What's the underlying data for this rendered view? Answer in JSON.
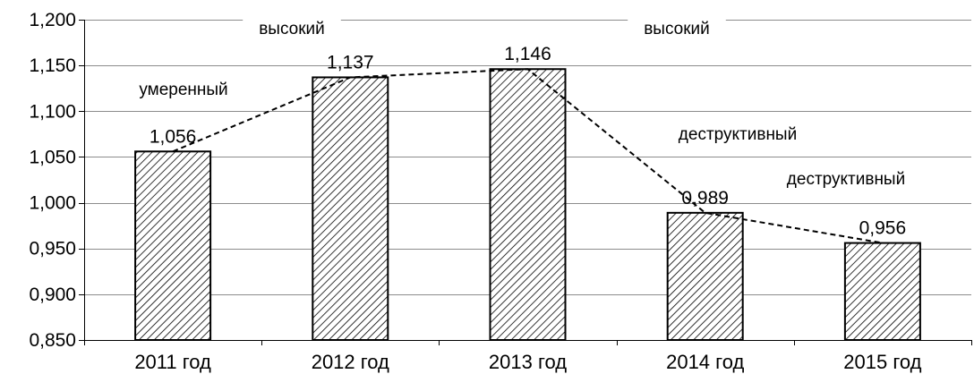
{
  "chart_data": {
    "type": "bar",
    "categories": [
      "2011 год",
      "2012 год",
      "2013 год",
      "2014 год",
      "2015 год"
    ],
    "values": [
      1.056,
      1.137,
      1.146,
      0.989,
      0.956
    ],
    "value_labels": [
      "1,056",
      "1,137",
      "1,146",
      "0,989",
      "0,956"
    ],
    "ylim": [
      0.85,
      1.2
    ],
    "yticks": [
      0.85,
      0.9,
      0.95,
      1.0,
      1.05,
      1.1,
      1.15,
      1.2
    ],
    "ytick_labels": [
      "0,850",
      "0,900",
      "0,950",
      "1,000",
      "1,050",
      "1,100",
      "1,150",
      "1,200"
    ],
    "grid": true,
    "bar_fill": "diagonal-hatch",
    "trend_line": {
      "style": "dashed",
      "through": "bar-tops"
    },
    "annotations": [
      {
        "text": "умеренный",
        "category": "2011 год"
      },
      {
        "text": "высокий",
        "category": "2012 год"
      },
      {
        "text": "высокий",
        "category": "2014 год"
      },
      {
        "text": "деструктивный",
        "category": "2014 год"
      },
      {
        "text": "деструктивный",
        "category": "2015 год"
      }
    ],
    "colors": {
      "bar_stroke": "#000000",
      "hatch": "#000000",
      "grid": "#8c8c8c",
      "background": "#ffffff"
    }
  }
}
